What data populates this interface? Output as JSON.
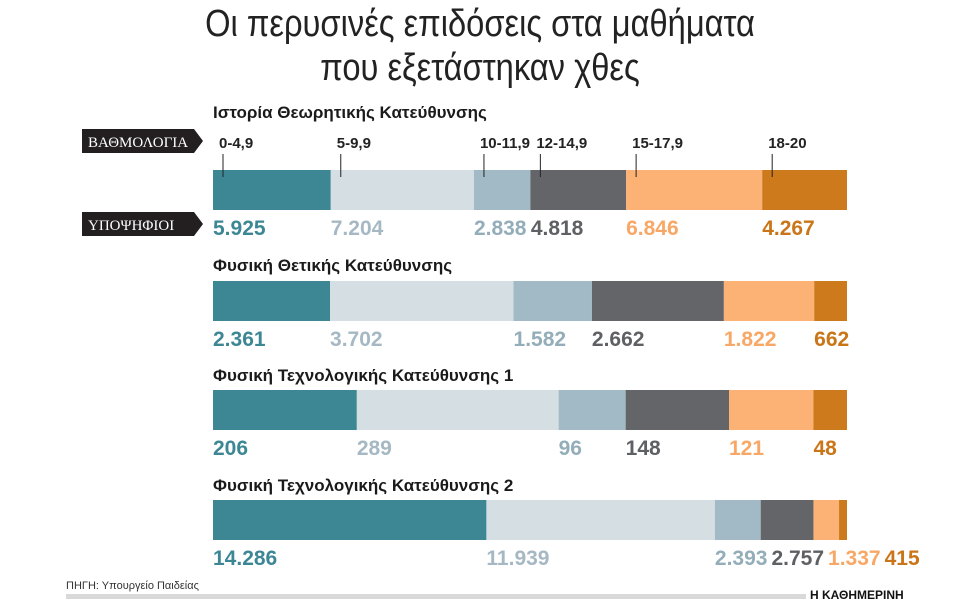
{
  "title_lines": [
    "Οι περυσινές επιδόσεις στα μαθήματα",
    "που εξετάστηκαν χθες"
  ],
  "labels": {
    "grades": "ΒΑΘΜΟΛΟΓΙΑ",
    "candidates": "ΥΠΟΨΗΦΙΟΙ"
  },
  "source": "ΠΗΓΗ: Υπουργείο Παιδείας",
  "brand": "Η ΚΑΘΗΜΕΡΙΝΗ",
  "colors": [
    "#3d8795",
    "#d5dee3",
    "#a1bac5",
    "#636569",
    "#fbb274",
    "#cc7a1c"
  ],
  "value_colors": [
    "#3d8795",
    "#a5b8c3",
    "#93adb9",
    "#5e6064",
    "#f8a866",
    "#c97518"
  ],
  "chart_data": {
    "type": "bar",
    "orientation": "horizontal-stacked-100",
    "categories": [
      "0-4,9",
      "5-9,9",
      "10-11,9",
      "12-14,9",
      "15-17,9",
      "18-20"
    ],
    "series": [
      {
        "name": "Ιστορία Θεωρητικής Κατεύθυνσης",
        "values": [
          5925,
          7204,
          2838,
          4818,
          6846,
          4267
        ],
        "labels": [
          "5.925",
          "7.204",
          "2.838",
          "4.818",
          "6.846",
          "4.267"
        ]
      },
      {
        "name": "Φυσική Θετικής Κατεύθυνσης",
        "values": [
          2361,
          3702,
          1582,
          2662,
          1822,
          662
        ],
        "labels": [
          "2.361",
          "3.702",
          "1.582",
          "2.662",
          "1.822",
          "662"
        ]
      },
      {
        "name": "Φυσική Τεχνολογικής Κατεύθυνσης 1",
        "values": [
          206,
          289,
          96,
          148,
          121,
          48
        ],
        "labels": [
          "206",
          "289",
          "96",
          "148",
          "121",
          "48"
        ]
      },
      {
        "name": "Φυσική Τεχνολογικής Κατεύθυνσης 2",
        "values": [
          14286,
          11939,
          2393,
          2757,
          1337,
          415
        ],
        "labels": [
          "14.286",
          "11.939",
          "2.393",
          "2.757",
          "1.337",
          "415"
        ]
      }
    ]
  }
}
